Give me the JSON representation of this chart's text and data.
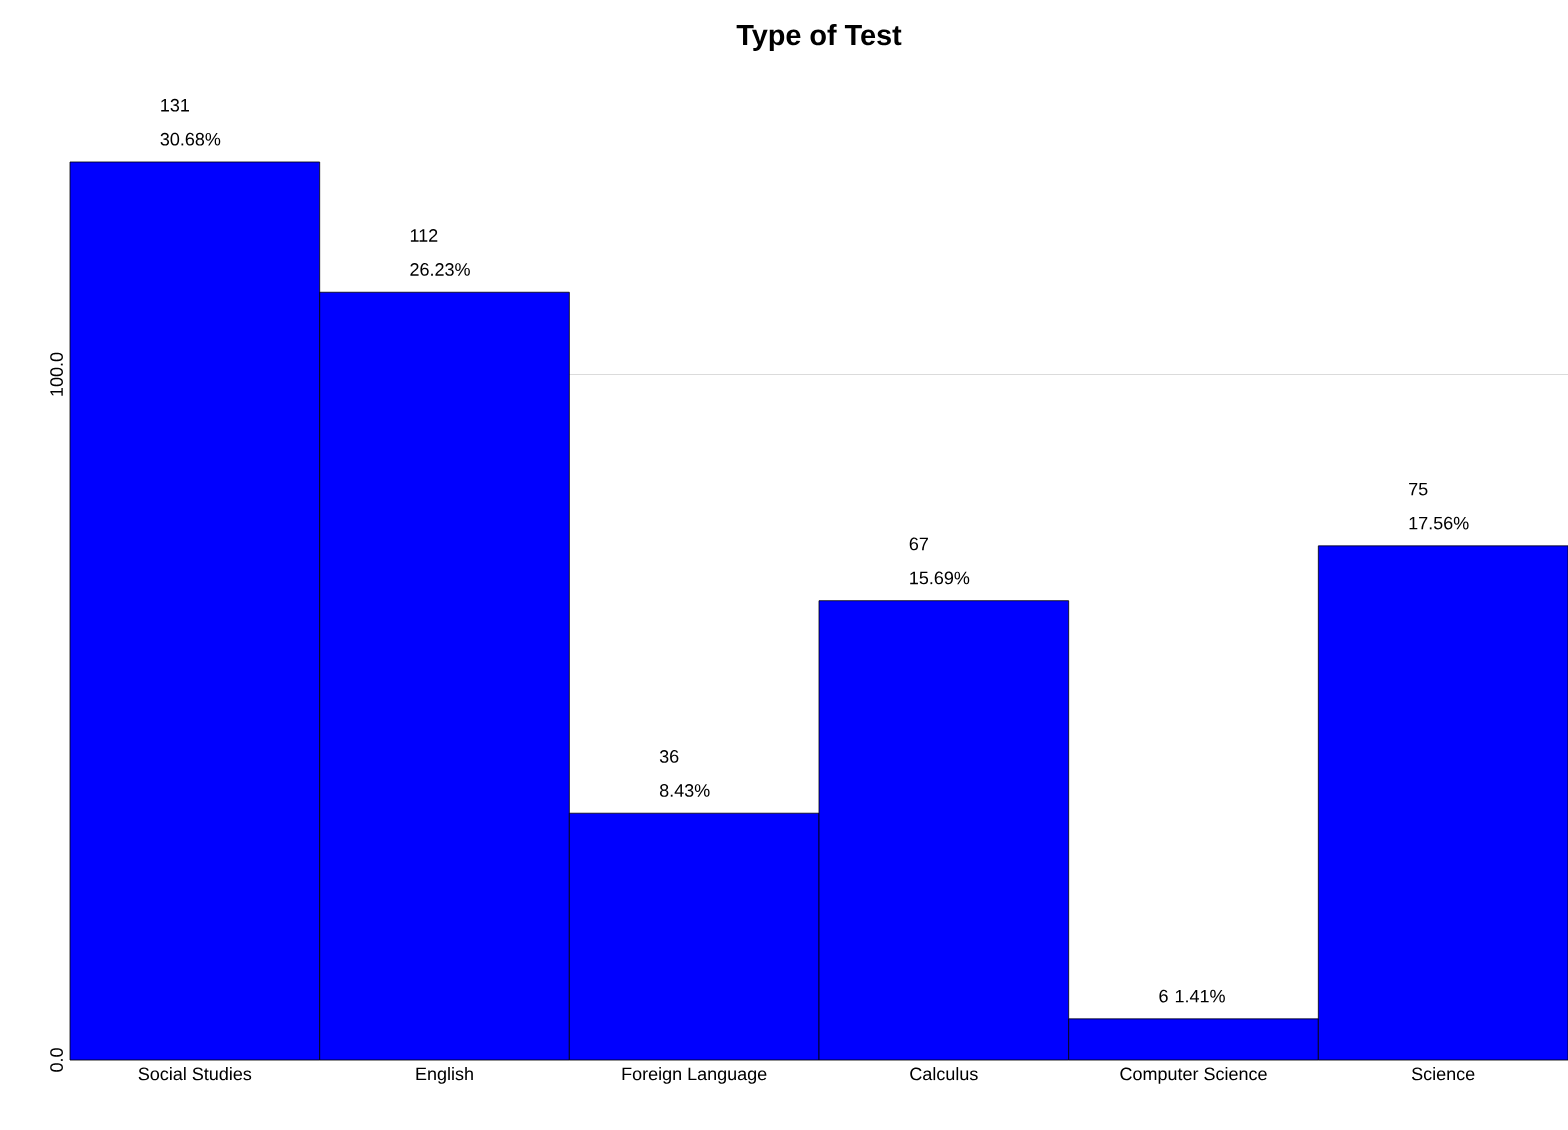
{
  "chart_data": {
    "type": "bar",
    "title": "Type of Test",
    "categories": [
      "Social Studies",
      "English",
      "Foreign Language",
      "Calculus",
      "Computer Science",
      "Science"
    ],
    "values": [
      131,
      112,
      36,
      67,
      6,
      75
    ],
    "value_labels": [
      "131 30.68%",
      "112 26.23%",
      "36 8.43%",
      "67 15.69%",
      "6 1.41%",
      "75 17.56%"
    ],
    "color": "#0000ff",
    "ylim": [
      0,
      131
    ],
    "yticks": [
      {
        "value": 0,
        "label": "0.0"
      },
      {
        "value": 100,
        "label": "100.0"
      }
    ],
    "grid": "y"
  }
}
